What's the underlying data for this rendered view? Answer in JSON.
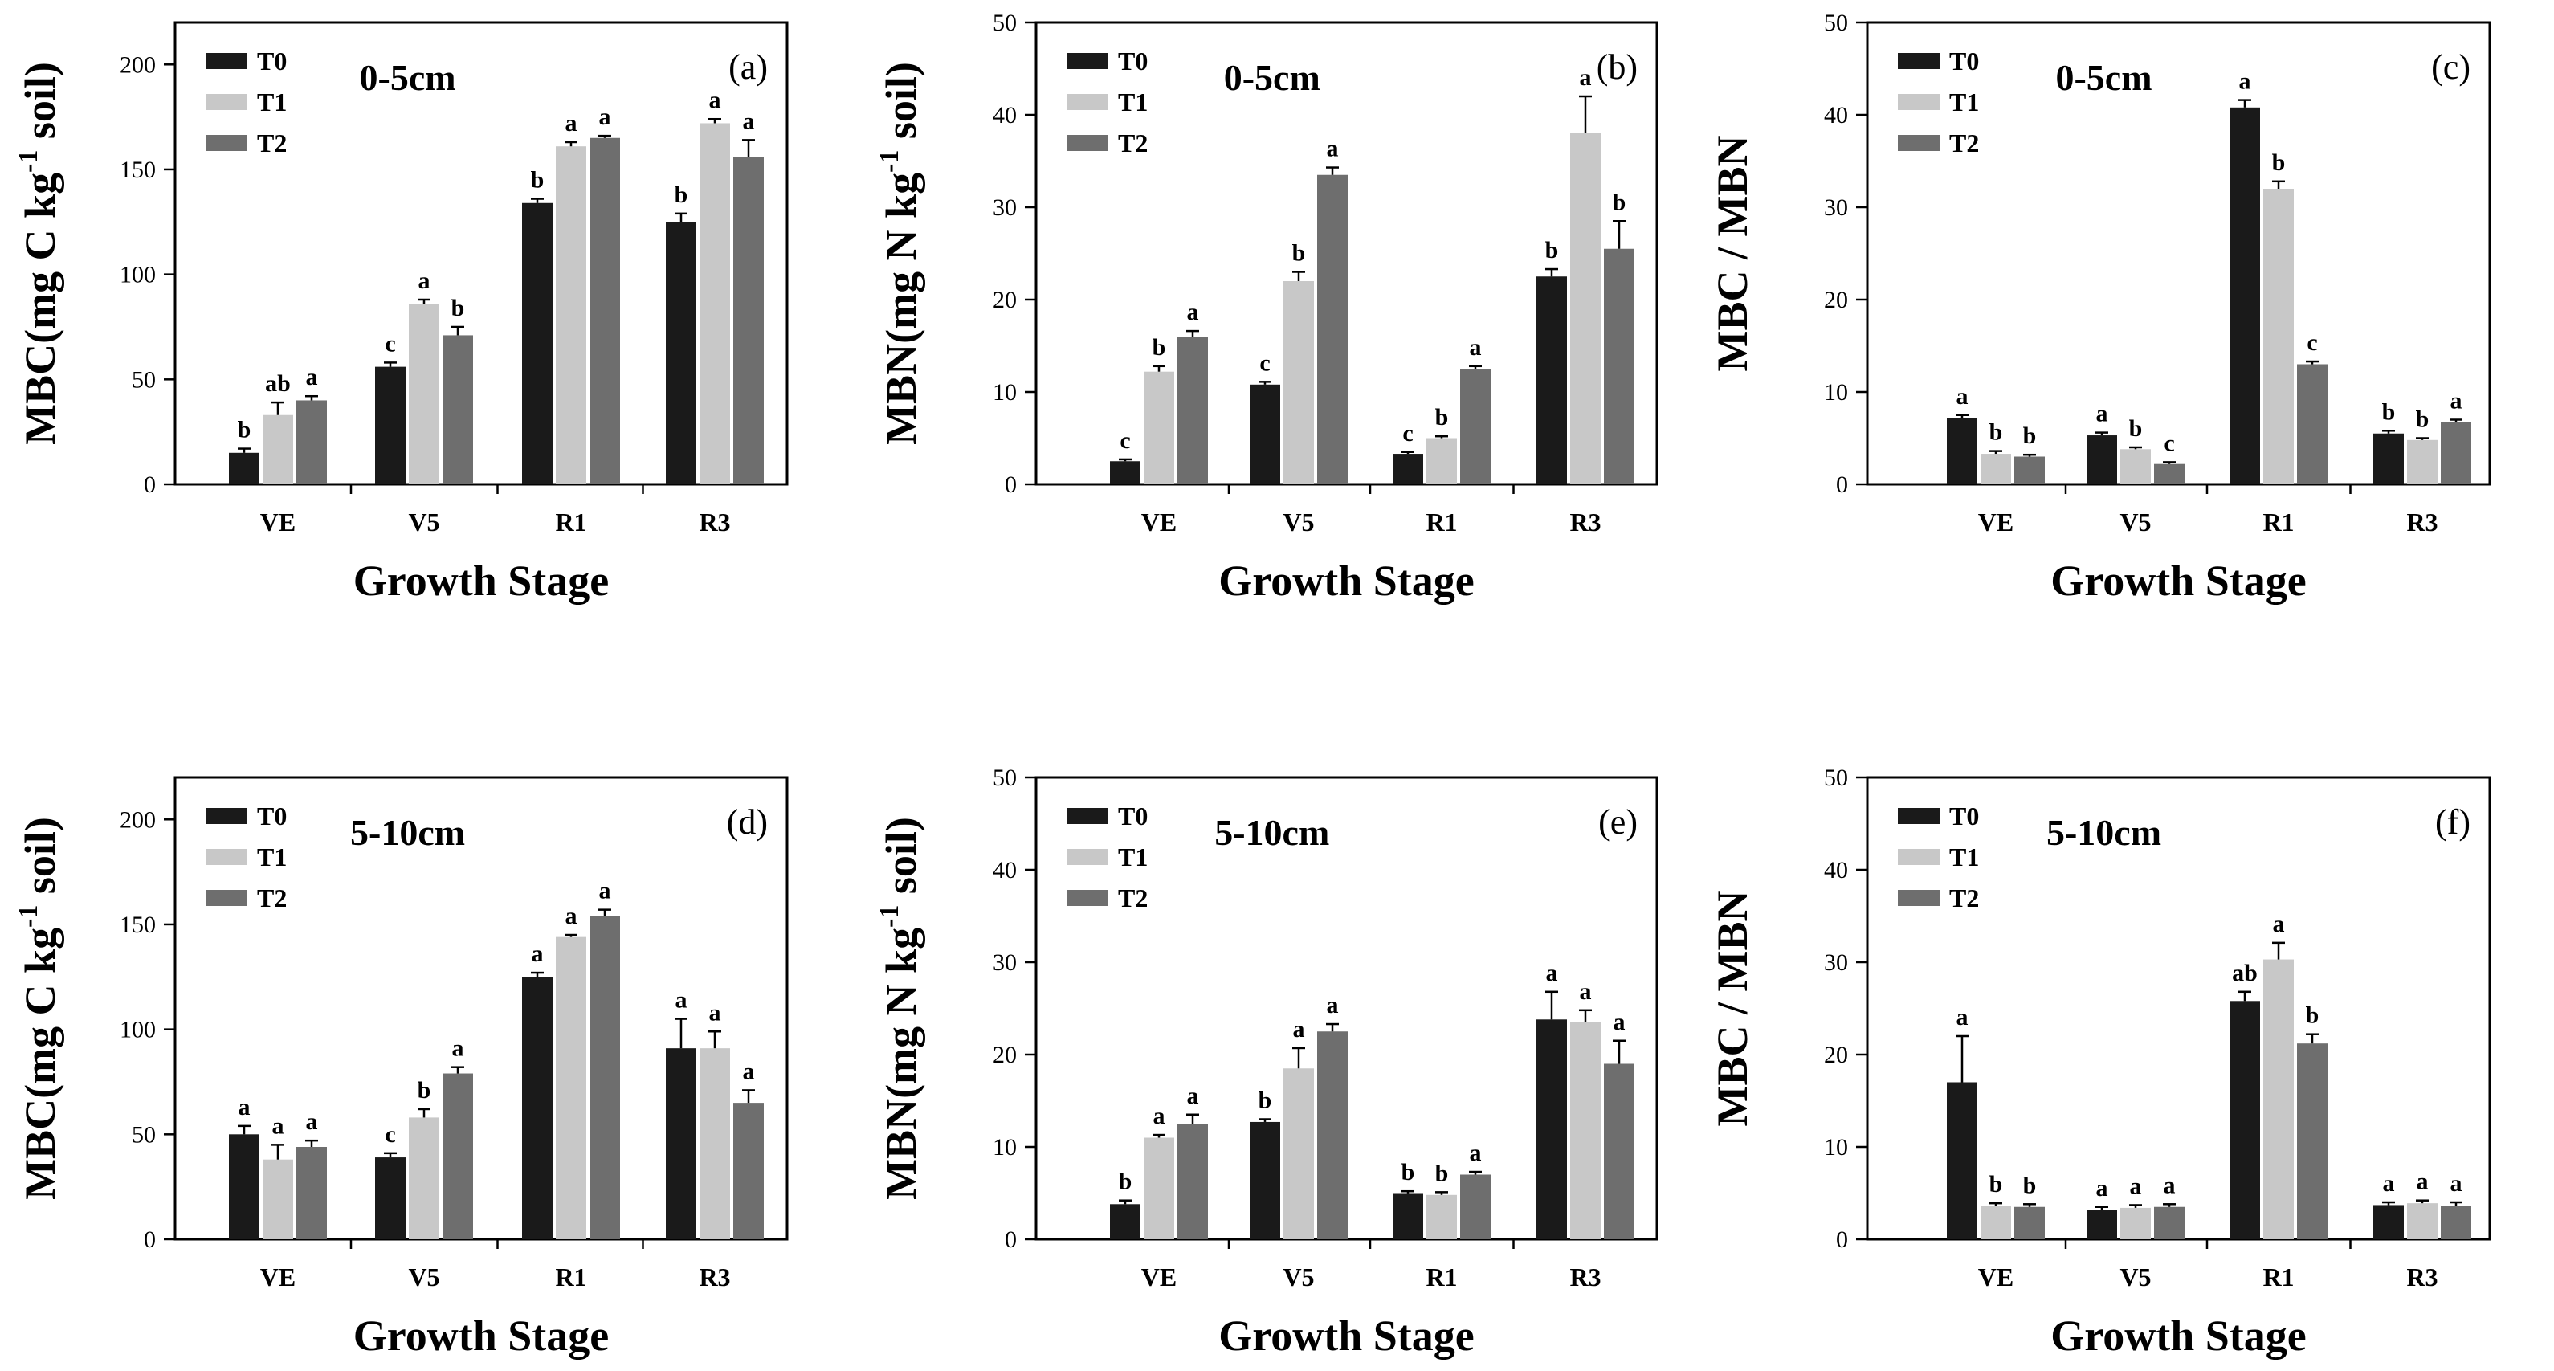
{
  "colors": {
    "T0": "#1a1a1a",
    "T1": "#c8c8c8",
    "T2": "#6e6e6e"
  },
  "chart_data": [
    {
      "id": "a",
      "type": "bar",
      "title": "0-5cm",
      "panel_tag": "(a)",
      "xlabel": "Growth Stage",
      "ylabel_main": "MBC(mg C kg",
      "ylabel_sup": "-1",
      "ylabel_tail": " soil)",
      "ylim": [
        0,
        220
      ],
      "yticks": [
        0,
        50,
        100,
        150,
        200
      ],
      "ytick_labels": [
        "0",
        "50",
        "100",
        "150",
        "200"
      ],
      "categories": [
        "VE",
        "V5",
        "R1",
        "R3"
      ],
      "series": [
        {
          "name": "T0",
          "values": [
            15,
            56,
            134,
            125
          ],
          "errors": [
            2,
            2,
            2,
            4
          ],
          "letters": [
            "b",
            "c",
            "b",
            "b"
          ]
        },
        {
          "name": "T1",
          "values": [
            33,
            86,
            161,
            172
          ],
          "errors": [
            6,
            2,
            2,
            2
          ],
          "letters": [
            "ab",
            "a",
            "a",
            "a"
          ]
        },
        {
          "name": "T2",
          "values": [
            40,
            71,
            165,
            156
          ],
          "errors": [
            2,
            4,
            1,
            8
          ],
          "letters": [
            "a",
            "b",
            "a",
            "a"
          ]
        }
      ]
    },
    {
      "id": "b",
      "type": "bar",
      "title": "0-5cm",
      "panel_tag": "(b)",
      "xlabel": "Growth Stage",
      "ylabel_main": "MBN(mg N kg",
      "ylabel_sup": "-1",
      "ylabel_tail": " soil)",
      "ylim": [
        0,
        50
      ],
      "yticks": [
        0,
        10,
        20,
        30,
        40,
        50
      ],
      "ytick_labels": [
        "0",
        "10",
        "20",
        "30",
        "40",
        "50"
      ],
      "categories": [
        "VE",
        "V5",
        "R1",
        "R3"
      ],
      "series": [
        {
          "name": "T0",
          "values": [
            2.5,
            10.8,
            3.3,
            22.5
          ],
          "errors": [
            0.2,
            0.3,
            0.2,
            0.8
          ],
          "letters": [
            "c",
            "c",
            "c",
            "b"
          ]
        },
        {
          "name": "T1",
          "values": [
            12.2,
            22.0,
            5.0,
            38.0
          ],
          "errors": [
            0.6,
            1.0,
            0.2,
            4.0
          ],
          "letters": [
            "b",
            "b",
            "b",
            "a"
          ]
        },
        {
          "name": "T2",
          "values": [
            16.0,
            33.5,
            12.5,
            25.5
          ],
          "errors": [
            0.6,
            0.8,
            0.3,
            3.0
          ],
          "letters": [
            "a",
            "a",
            "a",
            "b"
          ]
        }
      ]
    },
    {
      "id": "c",
      "type": "bar",
      "title": "0-5cm",
      "panel_tag": "(c)",
      "xlabel": "Growth Stage",
      "ylabel_main": "MBC / MBN",
      "ylabel_sup": "",
      "ylabel_tail": "",
      "ylim": [
        0,
        50
      ],
      "yticks": [
        0,
        10,
        20,
        30,
        40,
        50
      ],
      "ytick_labels": [
        "0",
        "10",
        "20",
        "30",
        "40",
        "50"
      ],
      "categories": [
        "VE",
        "V5",
        "R1",
        "R3"
      ],
      "series": [
        {
          "name": "T0",
          "values": [
            7.2,
            5.3,
            40.8,
            5.5
          ],
          "errors": [
            0.3,
            0.3,
            0.8,
            0.3
          ],
          "letters": [
            "a",
            "a",
            "a",
            "b"
          ]
        },
        {
          "name": "T1",
          "values": [
            3.3,
            3.8,
            32.0,
            4.8
          ],
          "errors": [
            0.3,
            0.2,
            0.8,
            0.2
          ],
          "letters": [
            "b",
            "b",
            "b",
            "b"
          ]
        },
        {
          "name": "T2",
          "values": [
            3.0,
            2.2,
            13.0,
            6.7
          ],
          "errors": [
            0.2,
            0.2,
            0.3,
            0.3
          ],
          "letters": [
            "b",
            "c",
            "c",
            "a"
          ]
        }
      ]
    },
    {
      "id": "d",
      "type": "bar",
      "title": "5-10cm",
      "panel_tag": "(d)",
      "xlabel": "Growth Stage",
      "ylabel_main": "MBC(mg C kg",
      "ylabel_sup": "-1",
      "ylabel_tail": " soil)",
      "ylim": [
        0,
        220
      ],
      "yticks": [
        0,
        50,
        100,
        150,
        200
      ],
      "ytick_labels": [
        "0",
        "50",
        "100",
        "150",
        "200"
      ],
      "categories": [
        "VE",
        "V5",
        "R1",
        "R3"
      ],
      "series": [
        {
          "name": "T0",
          "values": [
            50,
            39,
            125,
            91
          ],
          "errors": [
            4,
            2,
            2,
            14
          ],
          "letters": [
            "a",
            "c",
            "a",
            "a"
          ]
        },
        {
          "name": "T1",
          "values": [
            38,
            58,
            144,
            91
          ],
          "errors": [
            7,
            4,
            1,
            8
          ],
          "letters": [
            "a",
            "b",
            "a",
            "a"
          ]
        },
        {
          "name": "T2",
          "values": [
            44,
            79,
            154,
            65
          ],
          "errors": [
            3,
            3,
            3,
            6
          ],
          "letters": [
            "a",
            "a",
            "a",
            "a"
          ]
        }
      ]
    },
    {
      "id": "e",
      "type": "bar",
      "title": "5-10cm",
      "panel_tag": "(e)",
      "xlabel": "Growth Stage",
      "ylabel_main": "MBN(mg N kg",
      "ylabel_sup": "-1",
      "ylabel_tail": " soil)",
      "ylim": [
        0,
        50
      ],
      "yticks": [
        0,
        10,
        20,
        30,
        40,
        50
      ],
      "ytick_labels": [
        "0",
        "10",
        "20",
        "30",
        "40",
        "50"
      ],
      "categories": [
        "VE",
        "V5",
        "R1",
        "R3"
      ],
      "series": [
        {
          "name": "T0",
          "values": [
            3.8,
            12.7,
            5.0,
            23.8
          ],
          "errors": [
            0.4,
            0.3,
            0.2,
            3.0
          ],
          "letters": [
            "b",
            "b",
            "b",
            "a"
          ]
        },
        {
          "name": "T1",
          "values": [
            11.0,
            18.5,
            4.8,
            23.5
          ],
          "errors": [
            0.3,
            2.2,
            0.3,
            1.3
          ],
          "letters": [
            "a",
            "a",
            "b",
            "a"
          ]
        },
        {
          "name": "T2",
          "values": [
            12.5,
            22.5,
            7.0,
            19.0
          ],
          "errors": [
            1.0,
            0.8,
            0.3,
            2.5
          ],
          "letters": [
            "a",
            "a",
            "a",
            "a"
          ]
        }
      ]
    },
    {
      "id": "f",
      "type": "bar",
      "title": "5-10cm",
      "panel_tag": "(f)",
      "xlabel": "Growth Stage",
      "ylabel_main": "MBC / MBN",
      "ylabel_sup": "",
      "ylabel_tail": "",
      "ylim": [
        0,
        50
      ],
      "yticks": [
        0,
        10,
        20,
        30,
        40,
        50
      ],
      "ytick_labels": [
        "0",
        "10",
        "20",
        "30",
        "40",
        "50"
      ],
      "categories": [
        "VE",
        "V5",
        "R1",
        "R3"
      ],
      "series": [
        {
          "name": "T0",
          "values": [
            17.0,
            3.2,
            25.8,
            3.7
          ],
          "errors": [
            5.0,
            0.3,
            1.0,
            0.3
          ],
          "letters": [
            "a",
            "a",
            "ab",
            "a"
          ]
        },
        {
          "name": "T1",
          "values": [
            3.6,
            3.4,
            30.3,
            3.9
          ],
          "errors": [
            0.3,
            0.3,
            1.8,
            0.3
          ],
          "letters": [
            "b",
            "a",
            "a",
            "a"
          ]
        },
        {
          "name": "T2",
          "values": [
            3.5,
            3.5,
            21.2,
            3.6
          ],
          "errors": [
            0.3,
            0.3,
            1.0,
            0.4
          ],
          "letters": [
            "b",
            "a",
            "b",
            "a"
          ]
        }
      ]
    }
  ]
}
